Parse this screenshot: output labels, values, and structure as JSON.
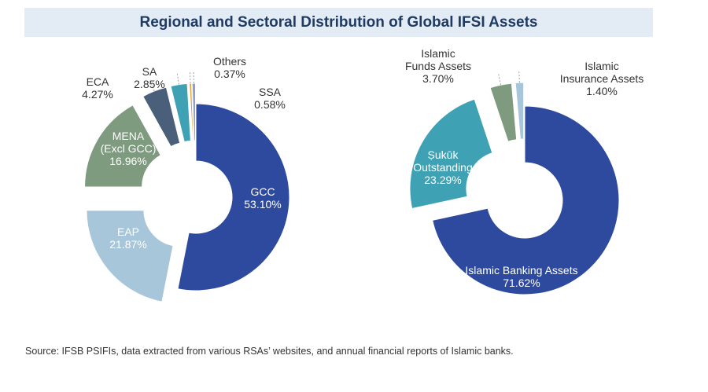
{
  "title": "Regional and Sectoral Distribution of Global IFSI Assets",
  "source": "Source: IFSB PSIFIs, data extracted from various RSAs’ websites, and annual financial reports of Islamic banks.",
  "chart_data": [
    {
      "type": "pie",
      "variant": "donut",
      "slices": [
        {
          "label": [
            "GCC"
          ],
          "value": 53.1,
          "value_label": "53.10%",
          "color": "#2e4a9e",
          "explode": 0,
          "label_color": "#ffffff"
        },
        {
          "label": [
            "EAP"
          ],
          "value": 21.87,
          "value_label": "21.87%",
          "color": "#a8c6da",
          "explode": 1,
          "label_color": "#ffffff"
        },
        {
          "label": [
            "MENA",
            "(Excl GCC)"
          ],
          "value": 16.96,
          "value_label": "16.96%",
          "color": "#7e9a7f",
          "explode": 1,
          "label_color": "#ffffff"
        },
        {
          "label": [
            "ECA"
          ],
          "value": 4.27,
          "value_label": "4.27%",
          "color": "#4a5f7a",
          "explode": 1,
          "label_color": "#333333"
        },
        {
          "label": [
            "SA"
          ],
          "value": 2.85,
          "value_label": "2.85%",
          "color": "#3fa2b4",
          "explode": 1,
          "label_color": "#333333"
        },
        {
          "label": [
            "Others"
          ],
          "value": 0.37,
          "value_label": "0.37%",
          "color": "#e8a23a",
          "explode": 1,
          "label_color": "#333333"
        },
        {
          "label": [
            "SSA"
          ],
          "value": 0.58,
          "value_label": "0.58%",
          "color": "#8fa1c8",
          "explode": 1,
          "label_color": "#333333"
        }
      ]
    },
    {
      "type": "pie",
      "variant": "donut",
      "slices": [
        {
          "label": [
            "Islamic Banking Assets"
          ],
          "value": 71.62,
          "value_label": "71.62%",
          "color": "#2e4a9e",
          "explode": 0,
          "label_color": "#ffffff"
        },
        {
          "label": [
            "Ṣukūk",
            "Outstanding"
          ],
          "value": 23.29,
          "value_label": "23.29%",
          "color": "#3fa2b4",
          "explode": 1,
          "label_color": "#ffffff"
        },
        {
          "label": [
            "Islamic",
            "Funds Assets"
          ],
          "value": 3.7,
          "value_label": "3.70%",
          "color": "#7e9a7f",
          "explode": 1,
          "label_color": "#333333"
        },
        {
          "label": [
            "Islamic",
            "Insurance Assets"
          ],
          "value": 1.4,
          "value_label": "1.40%",
          "color": "#a8c6da",
          "explode": 1,
          "label_color": "#333333"
        }
      ]
    }
  ]
}
